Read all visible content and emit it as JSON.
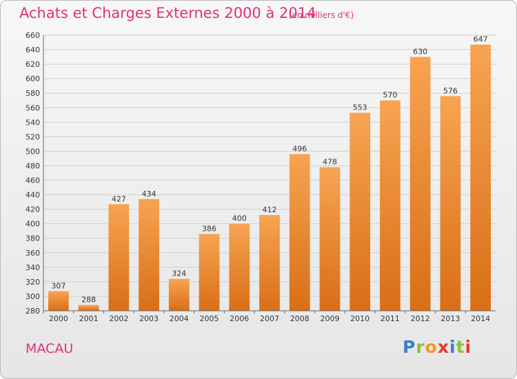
{
  "header": {
    "title": "Achats et Charges Externes 2000 à 2014",
    "subtitle": "(en milliers d'€)"
  },
  "footer": {
    "city": "MACAU",
    "logo": [
      "P",
      "r",
      "o",
      "x",
      "i",
      "t",
      "i"
    ]
  },
  "colors": {
    "bar_top": "#f7a452",
    "bar_bottom": "#d96e16",
    "accent": "#e0307a"
  },
  "chart_data": {
    "type": "bar",
    "title": "Achats et Charges Externes 2000 à 2014",
    "subtitle": "(en milliers d'€)",
    "xlabel": "",
    "ylabel": "",
    "categories": [
      "2000",
      "2001",
      "2002",
      "2003",
      "2004",
      "2005",
      "2006",
      "2007",
      "2008",
      "2009",
      "2010",
      "2011",
      "2012",
      "2013",
      "2014"
    ],
    "values": [
      307,
      288,
      427,
      434,
      324,
      386,
      400,
      412,
      496,
      478,
      553,
      570,
      630,
      576,
      647
    ],
    "ylim": [
      280,
      660
    ],
    "ytick_step": 20,
    "grid": true,
    "legend": "none"
  }
}
